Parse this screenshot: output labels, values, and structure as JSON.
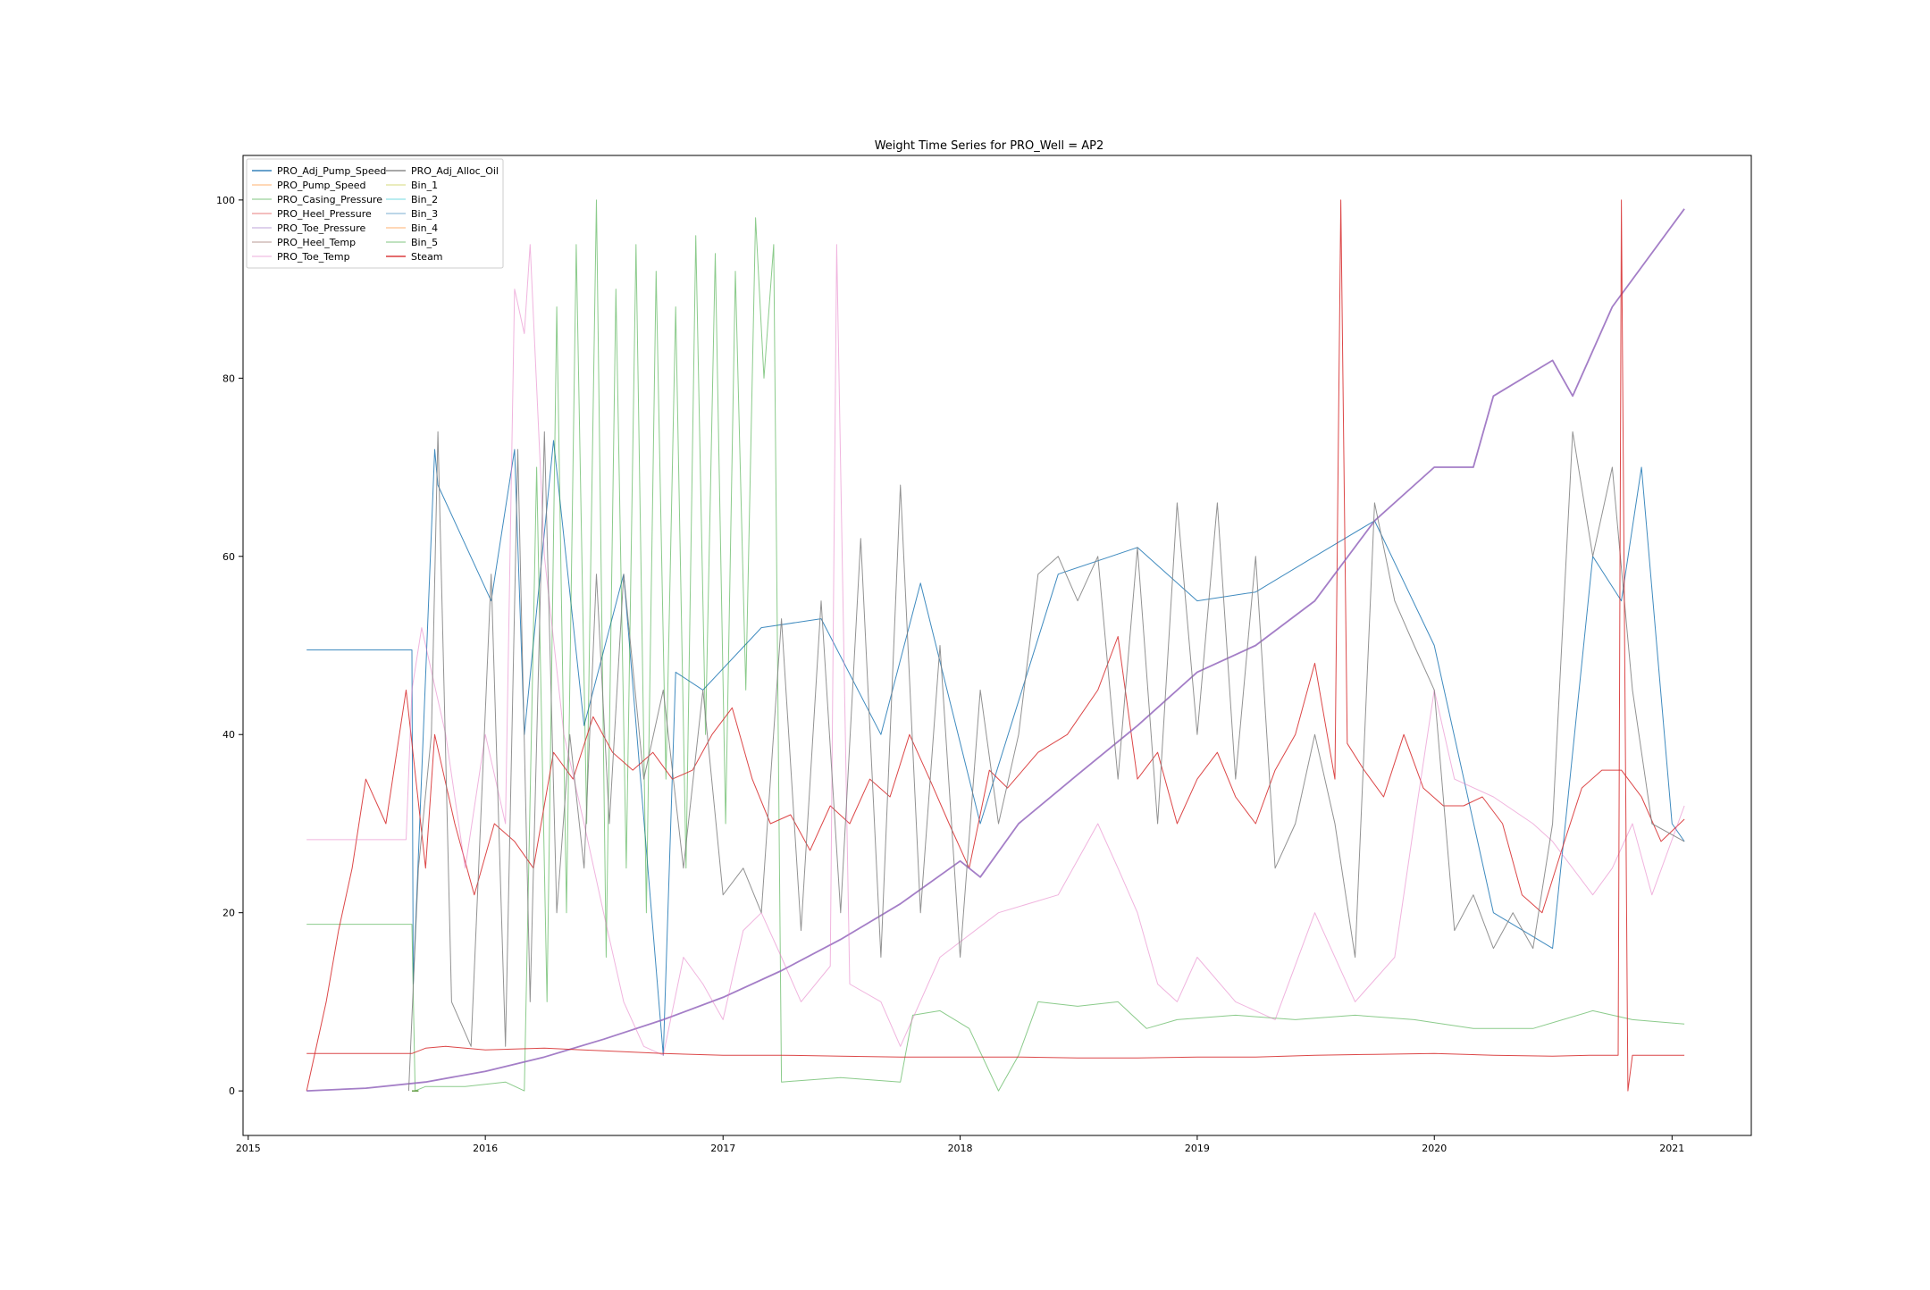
{
  "chart_data": {
    "type": "line",
    "title": "Weight Time Series for PRO_Well = AP2",
    "xlabel": "",
    "ylabel": "",
    "x_axis": {
      "kind": "date",
      "range": [
        "2014-12-24",
        "2021-05-03"
      ],
      "ticks": [
        "2015-01-01",
        "2016-01-01",
        "2017-01-01",
        "2018-01-01",
        "2019-01-01",
        "2020-01-01",
        "2021-01-01"
      ],
      "tick_labels": [
        "2015",
        "2016",
        "2017",
        "2018",
        "2019",
        "2020",
        "2021"
      ]
    },
    "y_axis": {
      "range": [
        -5,
        105
      ],
      "ticks": [
        0,
        20,
        40,
        60,
        80,
        100
      ],
      "tick_labels": [
        "0",
        "20",
        "40",
        "60",
        "80",
        "100"
      ]
    },
    "grid": false,
    "legend": {
      "position": "upper-left",
      "columns": 2
    },
    "series": [
      {
        "name": "PRO_Adj_Pump_Speed",
        "color": "#1f77b4",
        "x": [
          "2015-04-01",
          "2015-09-10",
          "2015-09-12",
          "2015-10-15",
          "2015-10-20",
          "2016-01-10",
          "2016-02-15",
          "2016-03-01",
          "2016-04-15",
          "2016-06-01",
          "2016-08-01",
          "2016-10-01",
          "2016-10-20",
          "2016-12-01",
          "2017-03-01",
          "2017-06-01",
          "2017-09-01",
          "2017-11-01",
          "2018-02-01",
          "2018-06-01",
          "2018-10-01",
          "2019-01-01",
          "2019-04-01",
          "2019-07-01",
          "2019-10-01",
          "2020-01-01",
          "2020-04-01",
          "2020-07-01",
          "2020-09-01",
          "2020-10-15",
          "2020-11-15",
          "2021-01-01",
          "2021-01-20"
        ],
        "y": [
          49.5,
          49.5,
          12,
          72,
          68,
          55,
          72,
          40,
          73,
          41,
          58,
          4,
          47,
          45,
          52,
          53,
          40,
          57,
          30,
          58,
          61,
          55,
          56,
          60,
          64,
          50,
          20,
          16,
          60,
          55,
          70,
          30,
          28
        ]
      },
      {
        "name": "PRO_Pump_Speed",
        "color": "#ff7f0e",
        "x": [
          "2015-09-10",
          "2015-09-20"
        ],
        "y": [
          0,
          0
        ]
      },
      {
        "name": "PRO_Casing_Pressure",
        "color": "#2ca02c",
        "x": [
          "2015-04-01",
          "2015-09-10",
          "2015-09-15",
          "2015-10-01",
          "2015-12-01",
          "2016-02-01",
          "2016-03-01",
          "2016-03-20",
          "2016-04-05",
          "2016-04-20",
          "2016-05-05",
          "2016-05-20",
          "2016-06-05",
          "2016-06-20",
          "2016-07-05",
          "2016-07-20",
          "2016-08-05",
          "2016-08-20",
          "2016-09-05",
          "2016-09-20",
          "2016-10-05",
          "2016-10-20",
          "2016-11-05",
          "2016-11-20",
          "2016-12-05",
          "2016-12-20",
          "2017-01-05",
          "2017-01-20",
          "2017-02-05",
          "2017-02-20",
          "2017-03-05",
          "2017-03-20",
          "2017-04-01",
          "2017-07-01",
          "2017-10-01",
          "2017-10-20",
          "2017-12-01",
          "2018-01-15",
          "2018-03-01",
          "2018-04-01",
          "2018-05-01",
          "2018-07-01",
          "2018-09-01",
          "2018-10-15",
          "2018-12-01",
          "2019-03-01",
          "2019-06-01",
          "2019-09-01",
          "2019-12-01",
          "2020-03-01",
          "2020-06-01",
          "2020-09-01",
          "2020-11-01",
          "2021-01-20"
        ],
        "y": [
          18.7,
          18.7,
          0,
          0.5,
          0.5,
          1,
          0,
          70,
          10,
          88,
          20,
          95,
          30,
          100,
          15,
          90,
          25,
          95,
          20,
          92,
          35,
          88,
          25,
          96,
          40,
          94,
          30,
          92,
          45,
          98,
          80,
          95,
          1,
          1.5,
          1,
          8.5,
          9,
          7,
          0,
          4,
          10,
          9.5,
          10,
          7,
          8,
          8.5,
          8,
          8.5,
          8,
          7,
          7,
          9,
          8,
          7.5
        ]
      },
      {
        "name": "PRO_Heel_Pressure",
        "color": "#d62728",
        "x": [
          "2015-04-01",
          "2015-05-01",
          "2015-05-20",
          "2015-06-10",
          "2015-07-01",
          "2015-08-01",
          "2015-09-01",
          "2015-10-01",
          "2015-10-15",
          "2015-11-15",
          "2015-12-15",
          "2016-01-15",
          "2016-02-15",
          "2016-03-15",
          "2016-04-15",
          "2016-05-15",
          "2016-06-15",
          "2016-07-15",
          "2016-08-15",
          "2016-09-15",
          "2016-10-15",
          "2016-11-15",
          "2016-12-15",
          "2017-01-15",
          "2017-02-15",
          "2017-03-15",
          "2017-04-15",
          "2017-05-15",
          "2017-06-15",
          "2017-07-15",
          "2017-08-15",
          "2017-09-15",
          "2017-10-15",
          "2017-11-15",
          "2017-12-15",
          "2018-01-15",
          "2018-02-15",
          "2018-03-15",
          "2018-05-01",
          "2018-06-15",
          "2018-08-01",
          "2018-09-01",
          "2018-10-01",
          "2018-11-01",
          "2018-12-01",
          "2019-01-01",
          "2019-02-01",
          "2019-03-01",
          "2019-04-01",
          "2019-05-01",
          "2019-06-01",
          "2019-07-01",
          "2019-08-01",
          "2019-08-10",
          "2019-08-20",
          "2019-09-15",
          "2019-10-15",
          "2019-11-15",
          "2019-12-15",
          "2020-01-15",
          "2020-02-15",
          "2020-03-15",
          "2020-04-15",
          "2020-05-15",
          "2020-06-15",
          "2020-07-15",
          "2020-08-15",
          "2020-09-15",
          "2020-10-15",
          "2020-11-15",
          "2020-12-15",
          "2021-01-20"
        ],
        "y": [
          0,
          10,
          18,
          25,
          35,
          30,
          45,
          25,
          40,
          30,
          22,
          30,
          28,
          25,
          38,
          35,
          42,
          38,
          36,
          38,
          35,
          36,
          40,
          43,
          35,
          30,
          31,
          27,
          32,
          30,
          35,
          33,
          40,
          35,
          30,
          25,
          36,
          34,
          38,
          40,
          45,
          51,
          35,
          38,
          30,
          35,
          38,
          33,
          30,
          36,
          40,
          48,
          35,
          100,
          39,
          36,
          33,
          40,
          34,
          32,
          32,
          33,
          30,
          22,
          20,
          27,
          34,
          36,
          36,
          33,
          28,
          30.5
        ]
      },
      {
        "name": "PRO_Toe_Pressure",
        "color": "#9467bd",
        "x": [
          "2015-04-01",
          "2015-07-01",
          "2015-10-01",
          "2016-01-01",
          "2016-04-01",
          "2016-07-01",
          "2016-10-01",
          "2017-01-01",
          "2017-04-01",
          "2017-07-01",
          "2017-10-01",
          "2018-01-01",
          "2018-02-01",
          "2018-04-01",
          "2018-07-01",
          "2018-10-01",
          "2019-01-01",
          "2019-04-01",
          "2019-07-01",
          "2019-10-01",
          "2020-01-01",
          "2020-03-01",
          "2020-04-01",
          "2020-07-01",
          "2020-08-01",
          "2020-10-01",
          "2021-01-20"
        ],
        "y": [
          0,
          0.3,
          1,
          2.2,
          3.8,
          5.8,
          8,
          10.5,
          13.5,
          17,
          21,
          25.8,
          24,
          30,
          35.5,
          41,
          47,
          50,
          55,
          64,
          70,
          70,
          78,
          82,
          78,
          88,
          99
        ]
      },
      {
        "name": "PRO_Heel_Temp",
        "color": "#8c564b",
        "x": [
          "2015-09-10",
          "2015-09-20"
        ],
        "y": [
          0,
          0
        ]
      },
      {
        "name": "PRO_Toe_Temp",
        "color": "#e377c2",
        "x": [
          "2015-04-01",
          "2015-09-01",
          "2015-09-10",
          "2015-09-25",
          "2015-11-01",
          "2015-12-01",
          "2016-01-01",
          "2016-02-01",
          "2016-02-15",
          "2016-03-01",
          "2016-03-10",
          "2016-04-01",
          "2016-05-01",
          "2016-06-01",
          "2016-07-01",
          "2016-08-01",
          "2016-09-01",
          "2016-10-01",
          "2016-11-01",
          "2016-12-01",
          "2017-01-01",
          "2017-02-01",
          "2017-03-01",
          "2017-04-01",
          "2017-05-01",
          "2017-06-15",
          "2017-06-25",
          "2017-07-15",
          "2017-09-01",
          "2017-10-01",
          "2017-12-01",
          "2018-03-01",
          "2018-06-01",
          "2018-08-01",
          "2018-09-01",
          "2018-10-01",
          "2018-11-01",
          "2018-12-01",
          "2019-01-01",
          "2019-03-01",
          "2019-05-01",
          "2019-07-01",
          "2019-09-01",
          "2019-11-01",
          "2019-12-01",
          "2020-01-01",
          "2020-02-01",
          "2020-04-01",
          "2020-06-01",
          "2020-07-01",
          "2020-09-01",
          "2020-10-01",
          "2020-11-01",
          "2020-12-01",
          "2021-01-20"
        ],
        "y": [
          28.2,
          28.2,
          45,
          52,
          40,
          25,
          40,
          30,
          90,
          85,
          95,
          60,
          40,
          30,
          20,
          10,
          5,
          4,
          15,
          12,
          8,
          18,
          20,
          15,
          10,
          14,
          95,
          12,
          10,
          5,
          15,
          20,
          22,
          30,
          25,
          20,
          12,
          10,
          15,
          10,
          8,
          20,
          10,
          15,
          30,
          45,
          35,
          33,
          30,
          28,
          22,
          25,
          30,
          22,
          32
        ]
      },
      {
        "name": "PRO_Adj_Alloc_Oil",
        "color": "#7f7f7f",
        "x": [
          "2015-09-05",
          "2015-09-20",
          "2015-10-10",
          "2015-10-20",
          "2015-11-10",
          "2015-12-10",
          "2016-01-10",
          "2016-02-01",
          "2016-02-20",
          "2016-03-10",
          "2016-04-01",
          "2016-04-20",
          "2016-05-10",
          "2016-06-01",
          "2016-06-20",
          "2016-07-10",
          "2016-08-01",
          "2016-09-01",
          "2016-10-01",
          "2016-11-01",
          "2016-12-01",
          "2017-01-01",
          "2017-02-01",
          "2017-03-01",
          "2017-04-01",
          "2017-05-01",
          "2017-06-01",
          "2017-07-01",
          "2017-08-01",
          "2017-09-01",
          "2017-10-01",
          "2017-11-01",
          "2017-12-01",
          "2018-01-01",
          "2018-02-01",
          "2018-03-01",
          "2018-04-01",
          "2018-05-01",
          "2018-06-01",
          "2018-07-01",
          "2018-08-01",
          "2018-09-01",
          "2018-10-01",
          "2018-11-01",
          "2018-12-01",
          "2019-01-01",
          "2019-02-01",
          "2019-03-01",
          "2019-04-01",
          "2019-05-01",
          "2019-06-01",
          "2019-07-01",
          "2019-08-01",
          "2019-09-01",
          "2019-10-01",
          "2019-11-01",
          "2019-12-01",
          "2020-01-01",
          "2020-02-01",
          "2020-03-01",
          "2020-04-01",
          "2020-05-01",
          "2020-06-01",
          "2020-07-01",
          "2020-08-01",
          "2020-09-01",
          "2020-10-01",
          "2020-11-01",
          "2020-12-01",
          "2021-01-20"
        ],
        "y": [
          0,
          25,
          40,
          74,
          10,
          5,
          58,
          5,
          72,
          10,
          74,
          20,
          40,
          25,
          58,
          30,
          58,
          35,
          45,
          25,
          45,
          22,
          25,
          20,
          53,
          18,
          55,
          20,
          62,
          15,
          68,
          20,
          50,
          15,
          45,
          30,
          40,
          58,
          60,
          55,
          60,
          35,
          61,
          30,
          66,
          40,
          66,
          35,
          60,
          25,
          30,
          40,
          30,
          15,
          66,
          55,
          50,
          45,
          18,
          22,
          16,
          20,
          16,
          30,
          74,
          60,
          70,
          45,
          30,
          28
        ]
      },
      {
        "name": "Bin_1",
        "color": "#bcbd22",
        "x": [
          "2015-09-10",
          "2015-09-20"
        ],
        "y": [
          0,
          0
        ]
      },
      {
        "name": "Bin_2",
        "color": "#17becf",
        "x": [
          "2015-09-10",
          "2015-09-20"
        ],
        "y": [
          0,
          0
        ]
      },
      {
        "name": "Bin_3",
        "color": "#1f77b4",
        "x": [
          "2015-09-10",
          "2015-09-20"
        ],
        "y": [
          0,
          0
        ]
      },
      {
        "name": "Bin_4",
        "color": "#ff7f0e",
        "x": [
          "2015-09-10",
          "2015-09-20"
        ],
        "y": [
          0,
          0
        ]
      },
      {
        "name": "Bin_5",
        "color": "#2ca02c",
        "x": [
          "2015-09-10",
          "2015-09-20"
        ],
        "y": [
          0,
          0
        ]
      },
      {
        "name": "Steam",
        "color": "#d62728",
        "x": [
          "2015-04-01",
          "2015-09-10",
          "2015-10-01",
          "2015-11-01",
          "2015-12-01",
          "2016-01-01",
          "2016-04-01",
          "2016-07-01",
          "2016-10-01",
          "2017-01-01",
          "2017-04-01",
          "2017-07-01",
          "2017-10-01",
          "2018-01-01",
          "2018-04-01",
          "2018-07-01",
          "2018-10-01",
          "2019-01-01",
          "2019-04-01",
          "2019-07-01",
          "2019-10-01",
          "2020-01-01",
          "2020-04-01",
          "2020-07-01",
          "2020-09-01",
          "2020-10-10",
          "2020-10-15",
          "2020-10-25",
          "2020-11-01",
          "2021-01-20"
        ],
        "y": [
          4.2,
          4.2,
          4.8,
          5,
          4.8,
          4.6,
          4.8,
          4.5,
          4.2,
          4,
          4,
          3.9,
          3.8,
          3.8,
          3.8,
          3.7,
          3.7,
          3.8,
          3.8,
          4,
          4.1,
          4.2,
          4,
          3.9,
          4,
          4,
          100,
          0,
          4,
          4
        ]
      }
    ]
  }
}
